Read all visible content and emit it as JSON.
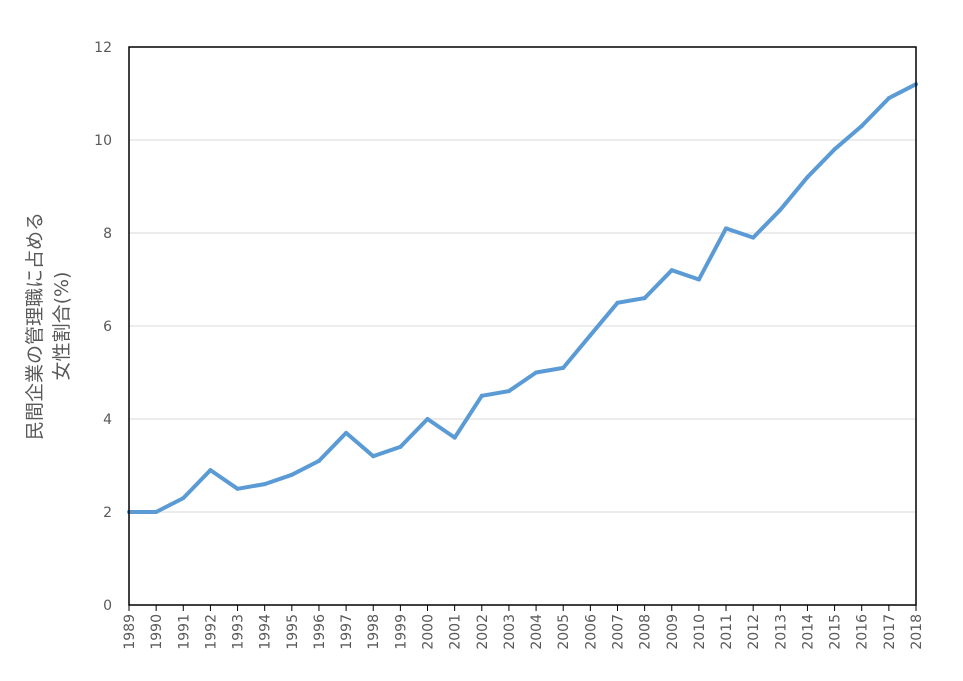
{
  "chart_data": {
    "type": "line",
    "ylabel_lines": [
      "民間企業の管理職に占める",
      "女性割合(%)"
    ],
    "ylim": [
      0,
      12
    ],
    "yticks": [
      0,
      2,
      4,
      6,
      8,
      10,
      12
    ],
    "grid": true,
    "x": [
      "1989",
      "1990",
      "1991",
      "1992",
      "1993",
      "1994",
      "1995",
      "1996",
      "1997",
      "1998",
      "1999",
      "2000",
      "2001",
      "2002",
      "2003",
      "2004",
      "2005",
      "2006",
      "2007",
      "2008",
      "2009",
      "2010",
      "2011",
      "2012",
      "2013",
      "2014",
      "2015",
      "2016",
      "2017",
      "2018"
    ],
    "series": [
      {
        "values": [
          2.0,
          2.0,
          2.3,
          2.9,
          2.5,
          2.6,
          2.8,
          3.1,
          3.7,
          3.2,
          3.4,
          4.0,
          3.6,
          4.5,
          4.6,
          5.0,
          5.1,
          5.8,
          6.5,
          6.6,
          7.2,
          7.0,
          8.1,
          7.9,
          8.5,
          9.2,
          9.8,
          10.3,
          10.9,
          11.2
        ],
        "color": "#5b9bd5"
      }
    ],
    "colors": {
      "line": "#5b9bd5",
      "grid": "#d9d9d9",
      "axis": "#000000",
      "text": "#595959"
    }
  }
}
